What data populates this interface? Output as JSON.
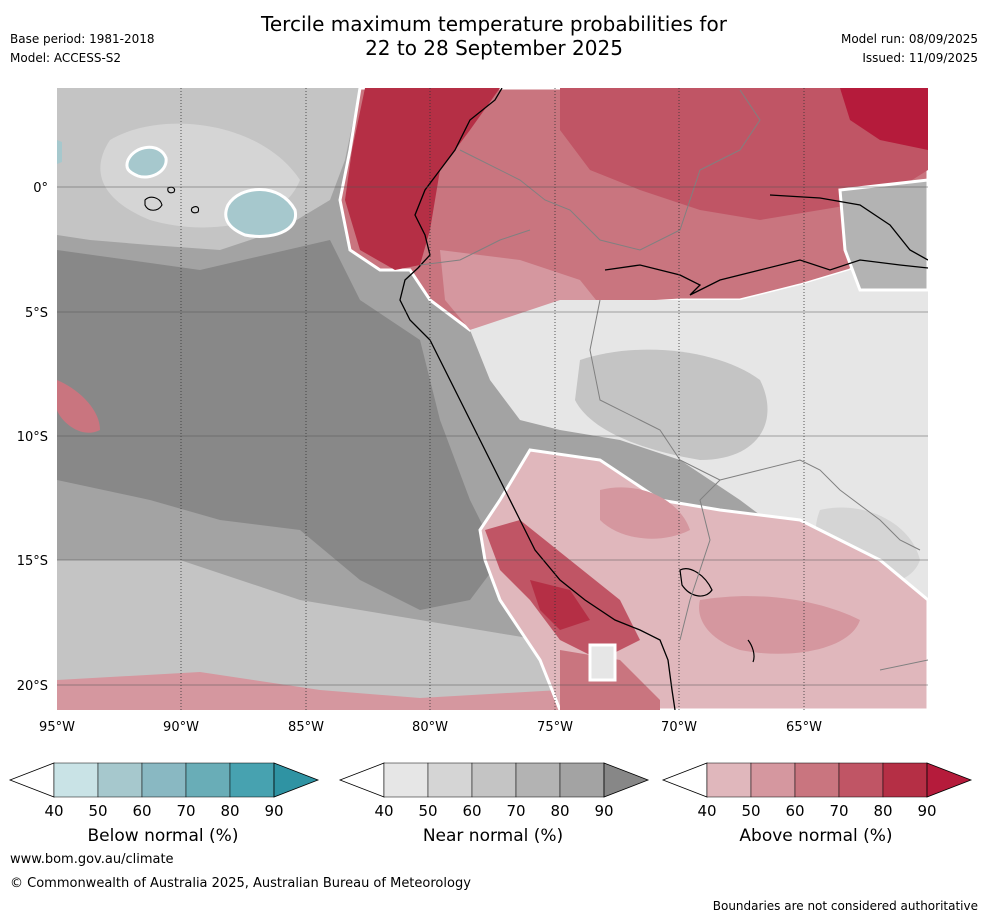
{
  "header": {
    "title_line1": "Tercile maximum temperature probabilities for",
    "title_line2": "22 to 28 September 2025",
    "base_period": "Base period: 1981-2018",
    "model": "Model: ACCESS-S2",
    "model_run": "Model run: 08/09/2025",
    "issued": "Issued: 11/09/2025"
  },
  "map": {
    "lat_labels": [
      "0°",
      "5°S",
      "10°S",
      "15°S",
      "20°S"
    ],
    "lon_labels": [
      "95°W",
      "90°W",
      "85°W",
      "80°W",
      "75°W",
      "70°W",
      "65°W"
    ],
    "colors": {
      "ocean_base": "#a2a2a2",
      "coast": "#000000",
      "borders": "#808080"
    }
  },
  "legends": [
    {
      "title": "Below normal (%)",
      "ticks": [
        "40",
        "50",
        "60",
        "70",
        "80",
        "90"
      ],
      "colors": [
        "#ffffff",
        "#c9e3e6",
        "#a6c8cd",
        "#89b8c2",
        "#69adb7",
        "#47a2b0",
        "#2f93a3"
      ]
    },
    {
      "title": "Near normal (%)",
      "ticks": [
        "40",
        "50",
        "60",
        "70",
        "80",
        "90"
      ],
      "colors": [
        "#ffffff",
        "#e6e6e6",
        "#d5d5d5",
        "#c4c4c4",
        "#b3b3b3",
        "#a3a3a3",
        "#878787"
      ]
    },
    {
      "title": "Above normal (%)",
      "ticks": [
        "40",
        "50",
        "60",
        "70",
        "80",
        "90"
      ],
      "colors": [
        "#ffffff",
        "#e0b7bc",
        "#d5979f",
        "#c9757f",
        "#c05565",
        "#b52f45",
        "#b51b3b"
      ]
    }
  ],
  "footer": {
    "url": "www.bom.gov.au/climate",
    "copyright": "© Commonwealth of Australia 2025, Australian Bureau of Meteorology",
    "disclaimer": "Boundaries are not considered authoritative"
  }
}
